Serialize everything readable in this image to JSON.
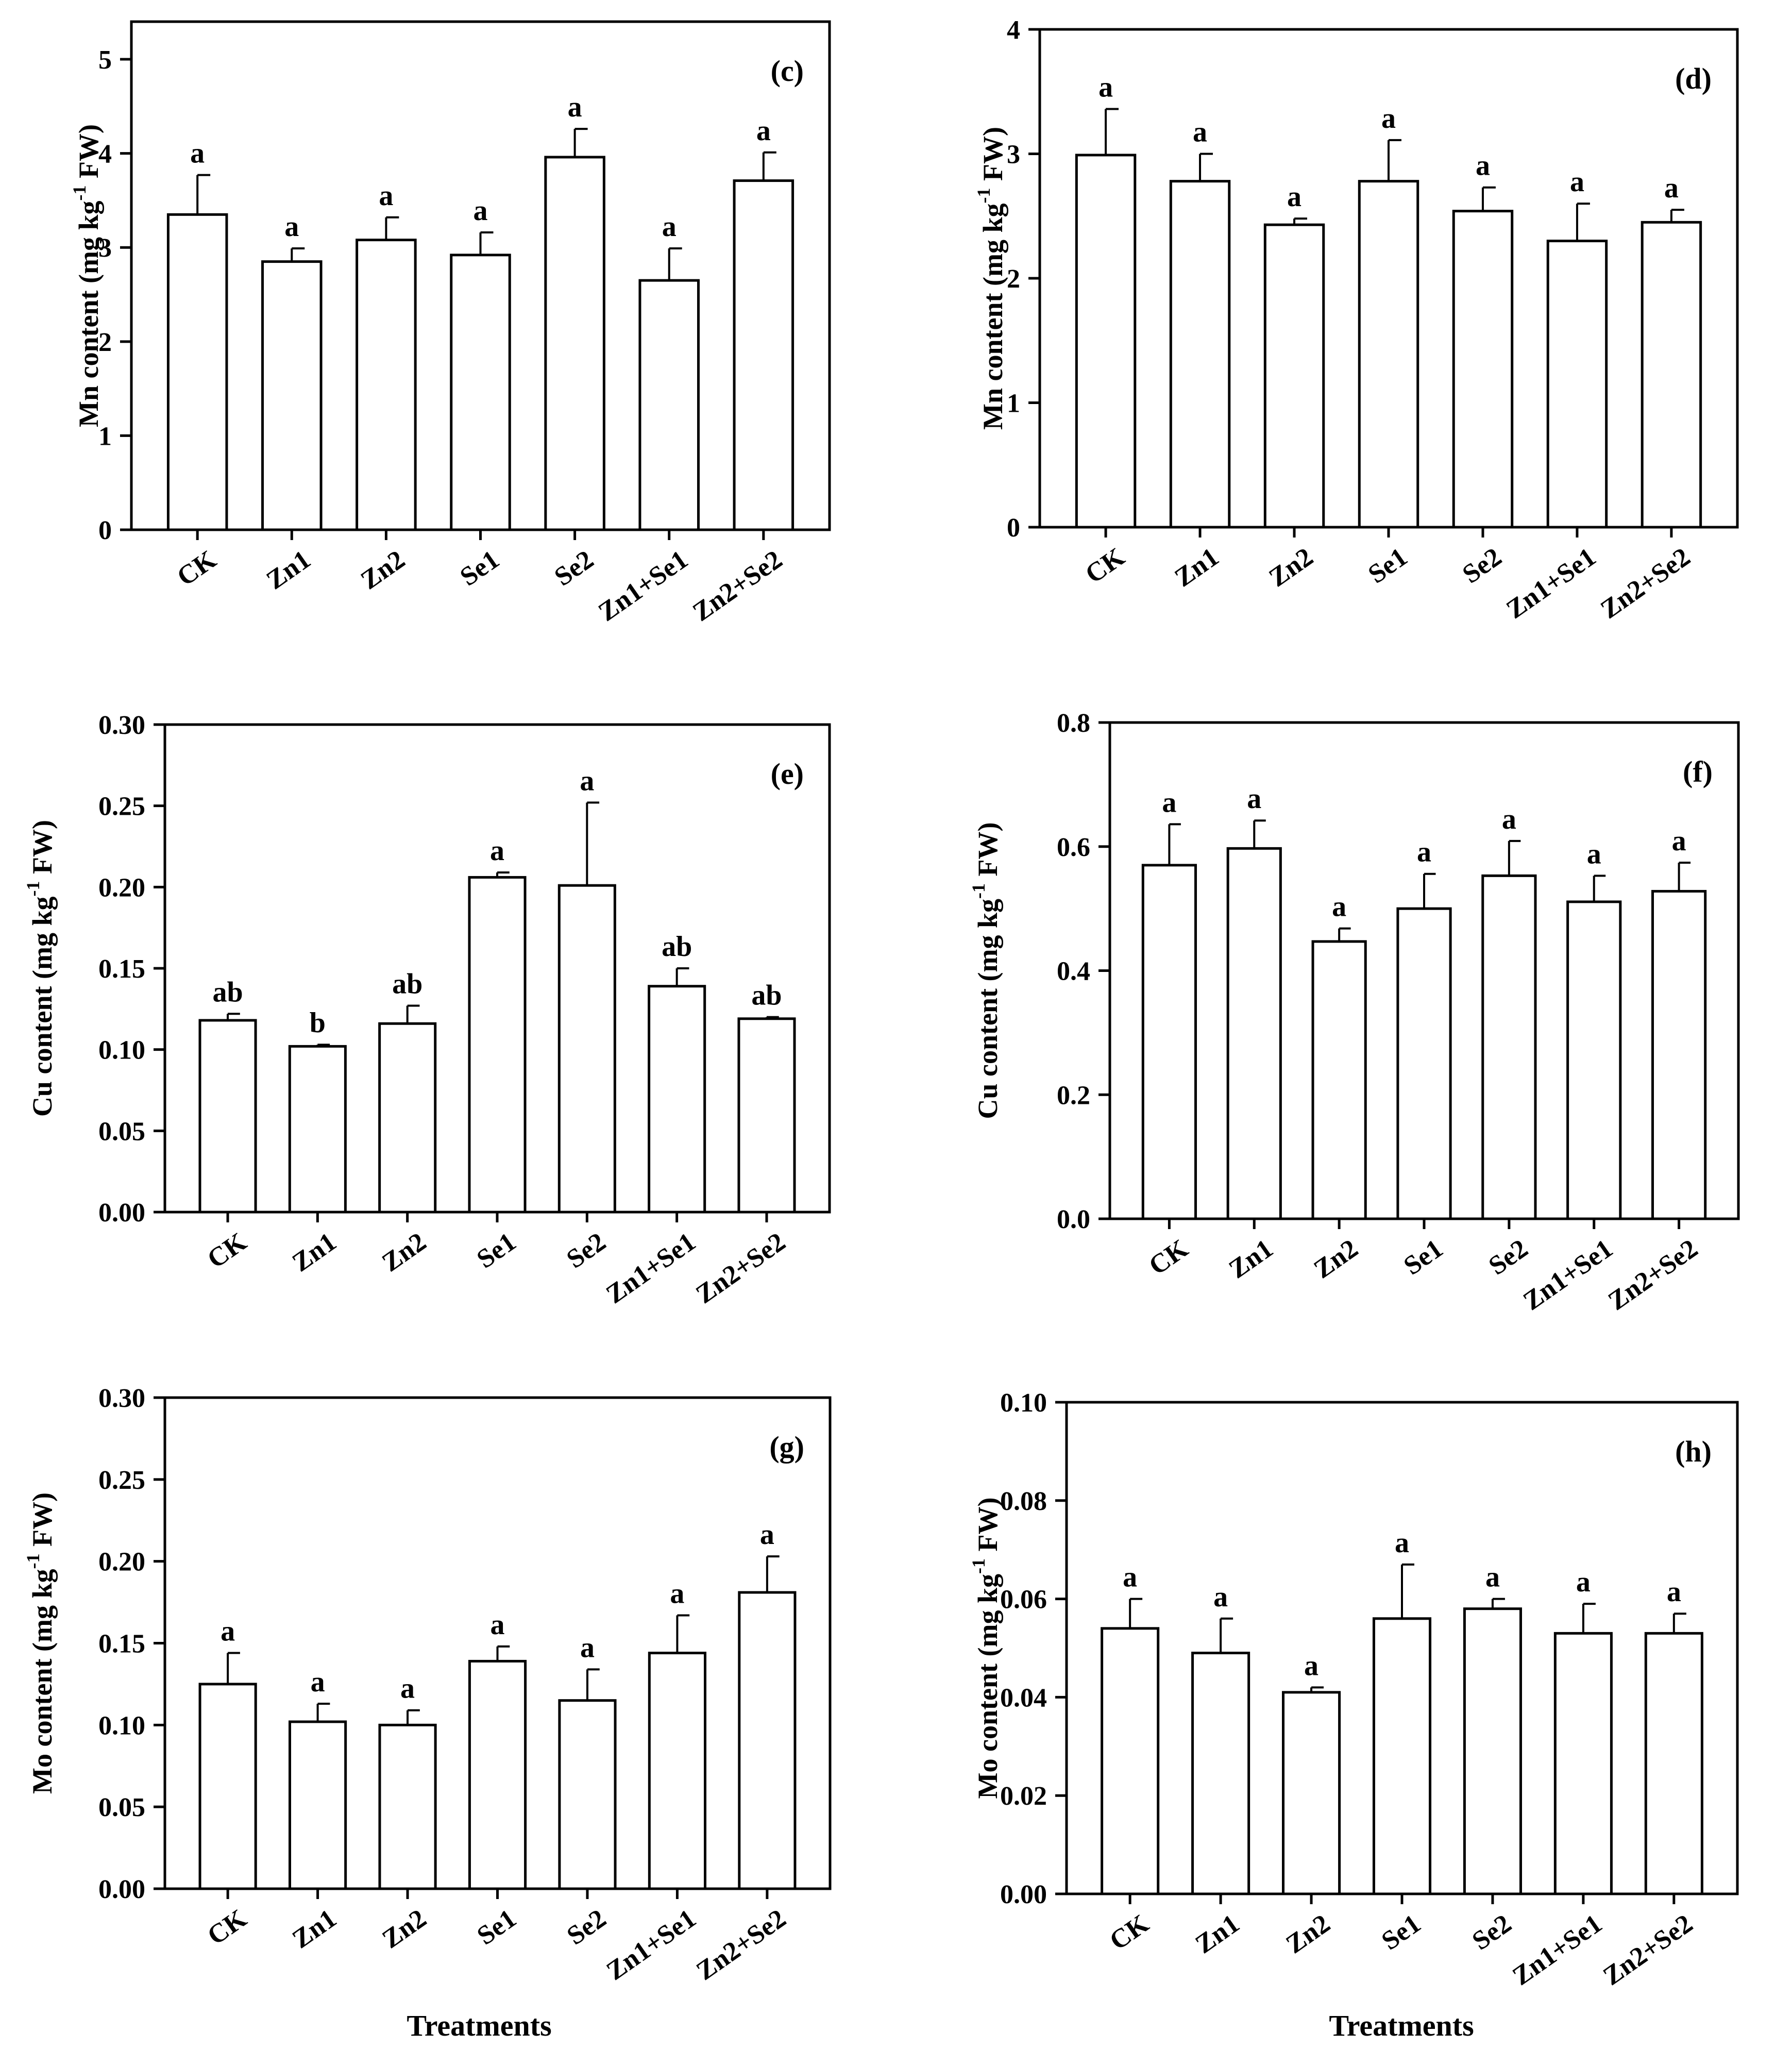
{
  "xlabel": "Treatments",
  "charts": [
    {
      "type": "bar",
      "panel_label": "(c)",
      "ylabel_main": "Mn content (mg kg",
      "ylabel_sup": "-1",
      "ylabel_end": " FW)",
      "ylim": [
        0,
        5.4
      ],
      "yticks": [
        "0",
        "1",
        "2",
        "3",
        "4",
        "5"
      ],
      "categories": [
        "CK",
        "Zn1",
        "Zn2",
        "Se1",
        "Se2",
        "Zn1+Se1",
        "Zn2+Se2"
      ],
      "values": [
        3.35,
        2.85,
        3.08,
        2.92,
        3.96,
        2.65,
        3.71
      ],
      "errors": [
        0.42,
        0.14,
        0.24,
        0.24,
        0.3,
        0.34,
        0.3
      ],
      "letters": [
        "a",
        "a",
        "a",
        "a",
        "a",
        "a",
        "a"
      ]
    },
    {
      "type": "bar",
      "panel_label": "(d)",
      "ylabel_main": "Mn content (mg kg",
      "ylabel_sup": "-1",
      "ylabel_end": " FW)",
      "ylim": [
        0,
        4
      ],
      "yticks": [
        "0",
        "1",
        "2",
        "3",
        "4"
      ],
      "categories": [
        "CK",
        "Zn1",
        "Zn2",
        "Se1",
        "Se2",
        "Zn1+Se1",
        "Zn2+Se2"
      ],
      "values": [
        2.99,
        2.78,
        2.43,
        2.78,
        2.54,
        2.3,
        2.45
      ],
      "errors": [
        0.37,
        0.22,
        0.05,
        0.33,
        0.19,
        0.3,
        0.1
      ],
      "letters": [
        "a",
        "a",
        "a",
        "a",
        "a",
        "a",
        "a"
      ]
    },
    {
      "type": "bar",
      "panel_label": "(e)",
      "ylabel_main": "Cu content (mg kg",
      "ylabel_sup": "-1",
      "ylabel_end": " FW)",
      "ylim": [
        0,
        0.3
      ],
      "yticks": [
        "0.00",
        "0.05",
        "0.10",
        "0.15",
        "0.20",
        "0.25",
        "0.30"
      ],
      "categories": [
        "CK",
        "Zn1",
        "Zn2",
        "Se1",
        "Se2",
        "Zn1+Se1",
        "Zn2+Se2"
      ],
      "values": [
        0.118,
        0.102,
        0.116,
        0.206,
        0.201,
        0.139,
        0.119
      ],
      "errors": [
        0.004,
        0.001,
        0.011,
        0.003,
        0.051,
        0.011,
        0.001
      ],
      "letters": [
        "ab",
        "b",
        "ab",
        "a",
        "a",
        "ab",
        "ab"
      ]
    },
    {
      "type": "bar",
      "panel_label": "(f)",
      "ylabel_main": "Cu content (mg kg",
      "ylabel_sup": "-1",
      "ylabel_end": " FW)",
      "ylim": [
        0,
        0.8
      ],
      "yticks": [
        "0.0",
        "0.2",
        "0.4",
        "0.6",
        "0.8"
      ],
      "categories": [
        "CK",
        "Zn1",
        "Zn2",
        "Se1",
        "Se2",
        "Zn1+Se1",
        "Zn2+Se2"
      ],
      "values": [
        0.57,
        0.597,
        0.447,
        0.5,
        0.553,
        0.511,
        0.528
      ],
      "errors": [
        0.066,
        0.045,
        0.021,
        0.056,
        0.056,
        0.042,
        0.046
      ],
      "letters": [
        "a",
        "a",
        "a",
        "a",
        "a",
        "a",
        "a"
      ]
    },
    {
      "type": "bar",
      "panel_label": "(g)",
      "ylabel_main": "Mo content (mg kg",
      "ylabel_sup": "-1",
      "ylabel_end": " FW)",
      "ylim": [
        0,
        0.3
      ],
      "yticks": [
        "0.00",
        "0.05",
        "0.10",
        "0.15",
        "0.20",
        "0.25",
        "0.30"
      ],
      "categories": [
        "CK",
        "Zn1",
        "Zn2",
        "Se1",
        "Se2",
        "Zn1+Se1",
        "Zn2+Se2"
      ],
      "values": [
        0.125,
        0.102,
        0.1,
        0.139,
        0.115,
        0.144,
        0.181
      ],
      "errors": [
        0.019,
        0.011,
        0.009,
        0.009,
        0.019,
        0.023,
        0.022
      ],
      "letters": [
        "a",
        "a",
        "a",
        "a",
        "a",
        "a",
        "a"
      ]
    },
    {
      "type": "bar",
      "panel_label": "(h)",
      "ylabel_main": "Mo content (mg kg",
      "ylabel_sup": "-1",
      "ylabel_end": " FW)",
      "ylim": [
        0,
        0.1
      ],
      "yticks": [
        "0.00",
        "0.02",
        "0.04",
        "0.06",
        "0.08",
        "0.10"
      ],
      "categories": [
        "CK",
        "Zn1",
        "Zn2",
        "Se1",
        "Se2",
        "Zn1+Se1",
        "Zn2+Se2"
      ],
      "values": [
        0.054,
        0.049,
        0.041,
        0.056,
        0.058,
        0.053,
        0.053
      ],
      "errors": [
        0.006,
        0.007,
        0.001,
        0.011,
        0.002,
        0.006,
        0.004
      ],
      "letters": [
        "a",
        "a",
        "a",
        "a",
        "a",
        "a",
        "a"
      ]
    }
  ]
}
